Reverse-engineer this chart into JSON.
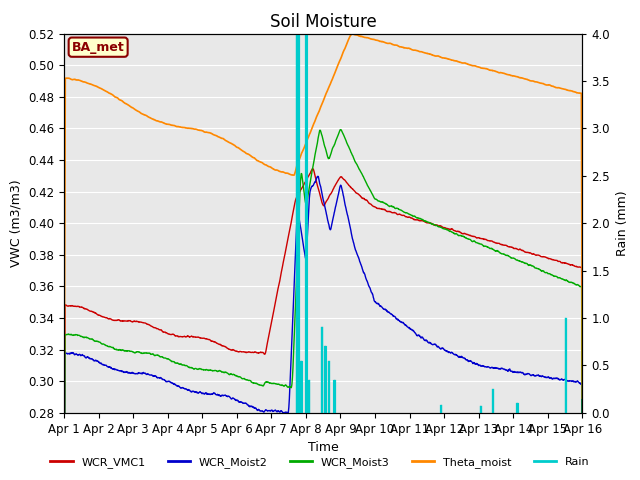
{
  "title": "Soil Moisture",
  "xlabel": "Time",
  "ylabel_left": "VWC (m3/m3)",
  "ylabel_right": "Rain (mm)",
  "ylim_left": [
    0.28,
    0.52
  ],
  "ylim_right": [
    0.0,
    4.0
  ],
  "xlim": [
    0,
    15
  ],
  "xtick_labels": [
    "Apr 1",
    "Apr 2",
    "Apr 3",
    "Apr 4",
    "Apr 5",
    "Apr 6",
    "Apr 7",
    "Apr 8",
    "Apr 9",
    "Apr 10",
    "Apr 11",
    "Apr 12",
    "Apr 13",
    "Apr 14",
    "Apr 15",
    "Apr 16"
  ],
  "yticks_left": [
    0.28,
    0.3,
    0.32,
    0.34,
    0.36,
    0.38,
    0.4,
    0.42,
    0.44,
    0.46,
    0.48,
    0.5,
    0.52
  ],
  "yticks_right": [
    0.0,
    0.5,
    1.0,
    1.5,
    2.0,
    2.5,
    3.0,
    3.5,
    4.0
  ],
  "colors": {
    "WCR_VMC1": "#cc0000",
    "WCR_Moist2": "#0000cc",
    "WCR_Moist3": "#00aa00",
    "Theta_moist": "#ff8800",
    "Rain": "#00cccc"
  },
  "background_color": "#e8e8e8",
  "annotation_text": "BA_met",
  "annotation_color": "#8B0000",
  "annotation_bg": "#ffffcc",
  "title_fontsize": 12,
  "axis_fontsize": 9,
  "tick_fontsize": 8.5
}
